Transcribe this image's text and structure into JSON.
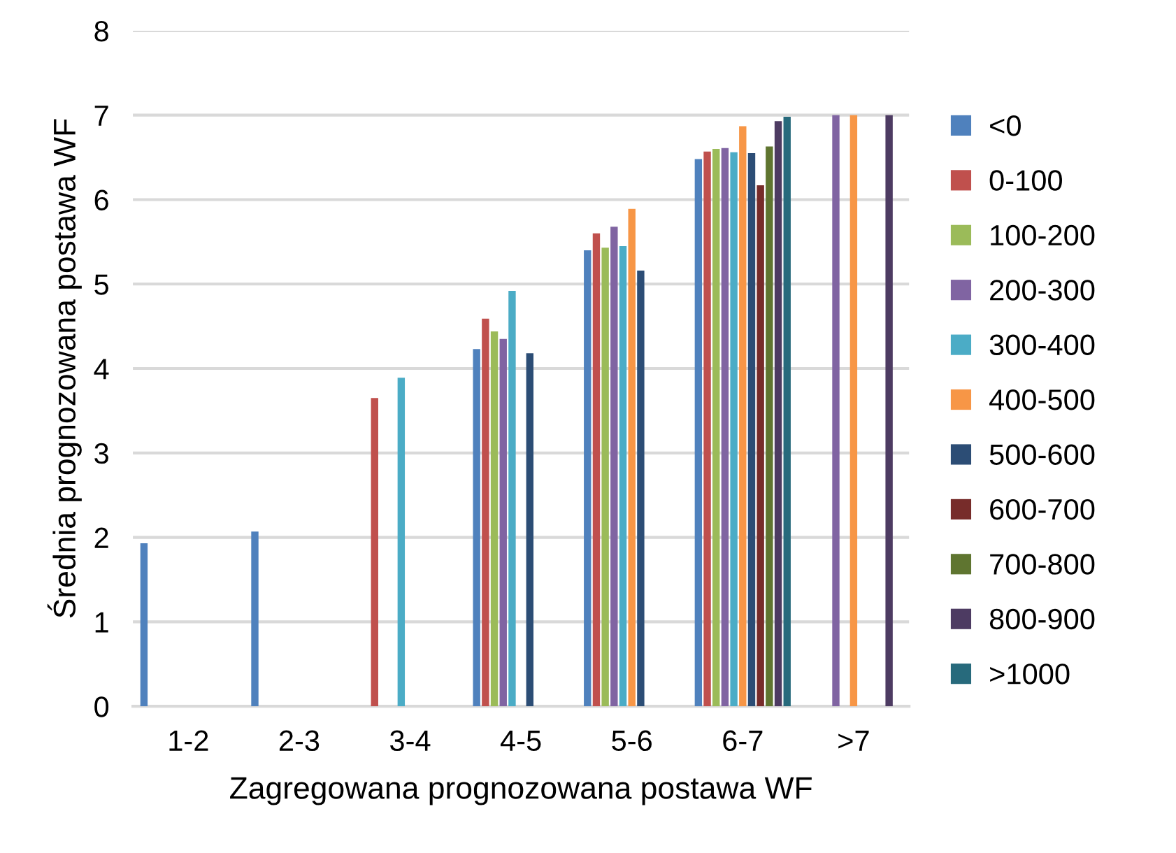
{
  "chart_data": {
    "type": "bar",
    "xlabel": "Zagregowana prognozowana postawa WF",
    "ylabel": "Średnia prognozowana postawa WF",
    "categories": [
      "1-2",
      "2-3",
      "3-4",
      "4-5",
      "5-6",
      "6-7",
      ">7"
    ],
    "series": [
      {
        "name": "<0",
        "color": "#4f81bd",
        "values": [
          1.93,
          2.07,
          null,
          4.23,
          5.4,
          6.48,
          null
        ]
      },
      {
        "name": "0-100",
        "color": "#c0504d",
        "values": [
          null,
          null,
          3.65,
          4.59,
          5.6,
          6.57,
          null
        ]
      },
      {
        "name": "100-200",
        "color": "#9bbb59",
        "values": [
          null,
          null,
          null,
          4.44,
          5.43,
          6.6,
          null
        ]
      },
      {
        "name": "200-300",
        "color": "#8064a2",
        "values": [
          null,
          null,
          null,
          4.35,
          5.68,
          6.61,
          7.0
        ]
      },
      {
        "name": "300-400",
        "color": "#4bacc6",
        "values": [
          null,
          null,
          3.89,
          4.92,
          5.45,
          6.56,
          null
        ]
      },
      {
        "name": "400-500",
        "color": "#f79646",
        "values": [
          null,
          null,
          null,
          null,
          5.89,
          6.87,
          7.0
        ]
      },
      {
        "name": "500-600",
        "color": "#2c4d75",
        "values": [
          null,
          null,
          null,
          4.18,
          5.16,
          6.55,
          null
        ]
      },
      {
        "name": "600-700",
        "color": "#772c2a",
        "values": [
          null,
          null,
          null,
          null,
          null,
          6.17,
          null
        ]
      },
      {
        "name": "700-800",
        "color": "#5f7530",
        "values": [
          null,
          null,
          null,
          null,
          null,
          6.63,
          null
        ]
      },
      {
        "name": "800-900",
        "color": "#4d3b62",
        "values": [
          null,
          null,
          null,
          null,
          null,
          6.93,
          7.0
        ]
      },
      {
        "name": ">1000",
        "color": "#276a7c",
        "values": [
          null,
          null,
          null,
          null,
          null,
          6.98,
          null
        ]
      }
    ],
    "ylim": [
      0,
      8
    ],
    "yticks": [
      0,
      1,
      2,
      3,
      4,
      5,
      6,
      7,
      8
    ],
    "grid": "y",
    "legend": "right"
  }
}
